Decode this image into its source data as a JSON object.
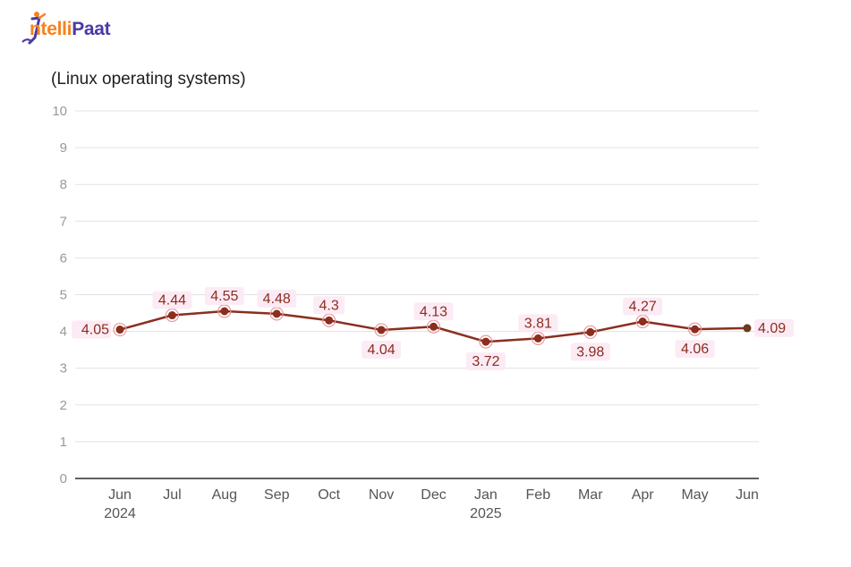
{
  "brand": {
    "logo_text_prefix": "ntelli",
    "logo_text_suffix": "Paat",
    "colors": {
      "orange": "#f58220",
      "purple": "#4a3aa7"
    }
  },
  "chart_data": {
    "type": "line",
    "title": "(Linux operating systems)",
    "categories": [
      "Jun",
      "Jul",
      "Aug",
      "Sep",
      "Oct",
      "Nov",
      "Dec",
      "Jan",
      "Feb",
      "Mar",
      "Apr",
      "May",
      "Jun"
    ],
    "year_labels": [
      "2024",
      "",
      "",
      "",
      "",
      "",
      "",
      "2025",
      "",
      "",
      "",
      "",
      ""
    ],
    "series": [
      {
        "values": [
          4.05,
          4.44,
          4.55,
          4.48,
          4.3,
          4.04,
          4.13,
          3.72,
          3.81,
          3.98,
          4.27,
          4.06,
          4.09
        ],
        "color": "#8b2e1e"
      }
    ],
    "data_labels": [
      "4.05",
      "4.44",
      "4.55",
      "4.48",
      "4.3",
      "4.04",
      "4.13",
      "3.72",
      "3.81",
      "3.98",
      "4.27",
      "4.06",
      "4.09"
    ],
    "label_positions": [
      "left",
      "above",
      "above",
      "above",
      "above",
      "below",
      "above",
      "below",
      "above",
      "below",
      "above",
      "below",
      "right"
    ],
    "ylim": [
      0,
      10
    ],
    "yticks": [
      "0",
      "1",
      "2",
      "3",
      "4",
      "5",
      "6",
      "7",
      "8",
      "9",
      "10"
    ],
    "grid": true,
    "colors": {
      "line": "#8b2e1e",
      "label": "#8b2e1e",
      "grid": "#e2e2e2",
      "axis": "#000000",
      "tick": "#999999"
    }
  }
}
